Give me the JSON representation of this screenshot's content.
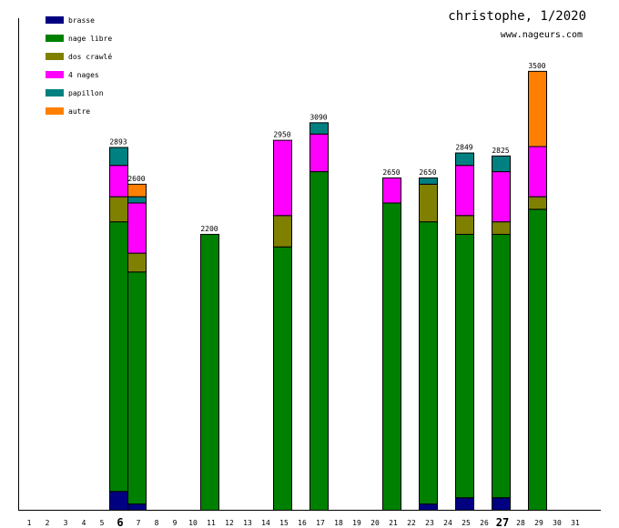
{
  "chart_data": {
    "type": "stacked_bar",
    "title": "christophe, 1/2020",
    "subtitle": "www.nageurs.com",
    "categories": [
      "1",
      "2",
      "3",
      "4",
      "5",
      "6",
      "7",
      "8",
      "9",
      "10",
      "11",
      "12",
      "13",
      "14",
      "15",
      "16",
      "17",
      "18",
      "19",
      "20",
      "21",
      "22",
      "23",
      "24",
      "25",
      "26",
      "27",
      "28",
      "29",
      "30",
      "31"
    ],
    "bold_categories": [
      "6",
      "27"
    ],
    "ylim": [
      0,
      3920
    ],
    "series": [
      {
        "name": "brasse",
        "color": "#000080",
        "values": [
          null,
          null,
          null,
          null,
          null,
          150,
          50,
          null,
          null,
          null,
          null,
          null,
          null,
          null,
          null,
          null,
          null,
          null,
          null,
          null,
          null,
          null,
          50,
          null,
          100,
          null,
          100,
          null,
          null,
          null,
          null
        ]
      },
      {
        "name": "nage libre",
        "color": "#008000",
        "values": [
          null,
          null,
          null,
          null,
          null,
          2150,
          1850,
          null,
          null,
          null,
          2200,
          null,
          null,
          null,
          2100,
          null,
          2700,
          null,
          null,
          null,
          2450,
          null,
          2250,
          null,
          2100,
          null,
          2100,
          null,
          2400,
          null,
          null
        ]
      },
      {
        "name": "dos crawlé",
        "color": "#808000",
        "values": [
          null,
          null,
          null,
          null,
          null,
          200,
          150,
          null,
          null,
          null,
          null,
          null,
          null,
          null,
          250,
          null,
          null,
          null,
          null,
          null,
          null,
          null,
          300,
          null,
          150,
          null,
          100,
          null,
          100,
          null,
          null
        ]
      },
      {
        "name": "4 nages",
        "color": "#ff00ff",
        "values": [
          null,
          null,
          null,
          null,
          null,
          250,
          400,
          null,
          null,
          null,
          null,
          null,
          null,
          null,
          600,
          null,
          300,
          null,
          null,
          null,
          200,
          null,
          null,
          null,
          400,
          null,
          400,
          null,
          400,
          null,
          null
        ]
      },
      {
        "name": "papillon",
        "color": "#008080",
        "values": [
          null,
          null,
          null,
          null,
          null,
          143,
          50,
          null,
          null,
          null,
          null,
          null,
          null,
          null,
          null,
          null,
          90,
          null,
          null,
          null,
          null,
          null,
          50,
          null,
          99,
          null,
          125,
          null,
          null,
          null,
          null
        ]
      },
      {
        "name": "autre",
        "color": "#ff8000",
        "values": [
          null,
          null,
          null,
          null,
          null,
          null,
          100,
          null,
          null,
          null,
          null,
          null,
          null,
          null,
          null,
          null,
          null,
          null,
          null,
          null,
          null,
          null,
          null,
          null,
          null,
          null,
          null,
          null,
          600,
          null,
          null
        ]
      }
    ],
    "totals": [
      null,
      null,
      null,
      null,
      null,
      2893,
      2600,
      null,
      null,
      null,
      2200,
      null,
      null,
      null,
      2950,
      null,
      3090,
      null,
      null,
      null,
      2650,
      null,
      2650,
      null,
      2849,
      null,
      2825,
      null,
      3500,
      null,
      null
    ]
  }
}
